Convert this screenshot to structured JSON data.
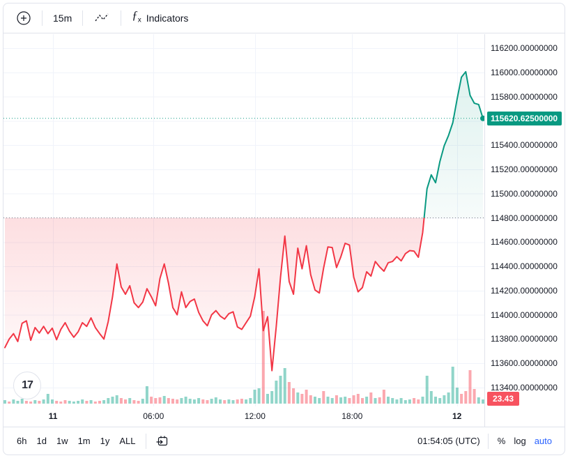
{
  "toolbar_top": {
    "plus_icon": "plus-circle",
    "interval": "15m",
    "style_icon": "baseline-style",
    "fx_glyph": "ƒ",
    "fx_sub": "x",
    "indicators_label": "Indicators"
  },
  "toolbar_bottom": {
    "ranges": [
      "6h",
      "1d",
      "1w",
      "1m",
      "1y",
      "ALL"
    ],
    "goto_icon": "calendar-goto",
    "clock": "01:54:05 (UTC)",
    "percent_label": "%",
    "log_label": "log",
    "auto_label": "auto"
  },
  "logo": {
    "text": "17"
  },
  "colors": {
    "up": "#089981",
    "down": "#f23645",
    "volume_up": "rgba(34,171,148,0.5)",
    "volume_down": "rgba(247,82,95,0.5)",
    "badge_up_bg": "#089981",
    "badge_vol_bg": "#f7525f",
    "grid": "#f0f3fa",
    "border": "#e0e3eb",
    "baseline_dots": "#787b86",
    "text": "#131722",
    "accent_blue": "#2962ff"
  },
  "price_axis": {
    "last_label": "115620.62500000",
    "volume_label": "23.43",
    "labels": [
      {
        "p": 116200,
        "t": "116200.00000000"
      },
      {
        "p": 116000,
        "t": "116000.00000000"
      },
      {
        "p": 115800,
        "t": "115800.00000000"
      },
      {
        "p": 115400,
        "t": "115400.00000000"
      },
      {
        "p": 115200,
        "t": "115200.00000000"
      },
      {
        "p": 115000,
        "t": "115000.00000000"
      },
      {
        "p": 114800,
        "t": "114800.00000000"
      },
      {
        "p": 114600,
        "t": "114600.00000000"
      },
      {
        "p": 114400,
        "t": "114400.00000000"
      },
      {
        "p": 114200,
        "t": "114200.00000000"
      },
      {
        "p": 114000,
        "t": "114000.00000000"
      },
      {
        "p": 113800,
        "t": "113800.00000000"
      },
      {
        "p": 113600,
        "t": "113600.00000000"
      },
      {
        "p": 113400,
        "t": "113400.00000000"
      }
    ]
  },
  "chart_data": {
    "type": "area",
    "style": "baseline",
    "interval": "15m",
    "baseline": 114800,
    "last_price": 115620.625,
    "y_max_label": 116200,
    "y_min_label": 113400,
    "y_step": 200,
    "grid": true,
    "time_ticks": [
      {
        "t": "11",
        "f": 0.103,
        "b": true
      },
      {
        "t": "06:00",
        "f": 0.312,
        "b": false
      },
      {
        "t": "12:00",
        "f": 0.523,
        "b": false
      },
      {
        "t": "18:00",
        "f": 0.725,
        "b": false
      },
      {
        "t": "12",
        "f": 0.943,
        "b": true
      }
    ],
    "prices": [
      113730,
      113800,
      113845,
      113780,
      113930,
      113950,
      113790,
      113895,
      113850,
      113905,
      113845,
      113890,
      113795,
      113880,
      113935,
      113865,
      113815,
      113860,
      113935,
      113905,
      113975,
      113895,
      113845,
      113800,
      113945,
      114150,
      114420,
      114230,
      114170,
      114240,
      114100,
      114060,
      114105,
      114215,
      114150,
      114075,
      114300,
      114420,
      114260,
      114060,
      114000,
      114190,
      114060,
      114110,
      114130,
      114020,
      113950,
      113910,
      114000,
      114035,
      113990,
      113965,
      114010,
      114025,
      113900,
      113880,
      113935,
      113990,
      114150,
      114380,
      113870,
      113985,
      113540,
      113905,
      114310,
      114650,
      114275,
      114170,
      114550,
      114380,
      114570,
      114330,
      114205,
      114180,
      114385,
      114560,
      114555,
      114390,
      114480,
      114590,
      114575,
      114310,
      114190,
      114225,
      114355,
      114320,
      114440,
      114395,
      114360,
      114430,
      114440,
      114480,
      114445,
      114505,
      114530,
      114525,
      114475,
      114680,
      115040,
      115155,
      115090,
      115265,
      115395,
      115480,
      115585,
      115780,
      115960,
      116005,
      115810,
      115745,
      115735,
      115620.625
    ],
    "volumes": [
      5,
      3,
      6,
      4,
      7,
      4,
      3,
      5,
      4,
      6,
      14,
      6,
      4,
      3,
      5,
      4,
      3,
      4,
      6,
      4,
      5,
      3,
      4,
      5,
      8,
      10,
      12,
      8,
      6,
      8,
      5,
      4,
      7,
      25,
      10,
      8,
      9,
      11,
      8,
      7,
      6,
      8,
      10,
      7,
      6,
      8,
      6,
      5,
      7,
      9,
      6,
      5,
      6,
      5,
      6,
      7,
      6,
      8,
      20,
      22,
      133,
      14,
      18,
      33,
      40,
      51,
      31,
      22,
      16,
      14,
      20,
      12,
      10,
      8,
      18,
      10,
      8,
      12,
      9,
      10,
      8,
      12,
      14,
      8,
      10,
      16,
      8,
      9,
      20,
      10,
      8,
      6,
      8,
      5,
      6,
      8,
      6,
      10,
      40,
      18,
      10,
      8,
      12,
      16,
      53,
      23,
      14,
      18,
      48,
      21,
      9,
      6
    ],
    "volume_colors": "grgggrrgrgggrrrggggrgrrggggrrgrrggrrrgrrrgggggrrgggrggrrggggrgggggrrgrrrggrggrggrrrrgrgrrggggggrrgggggggggrrrrgg"
  }
}
